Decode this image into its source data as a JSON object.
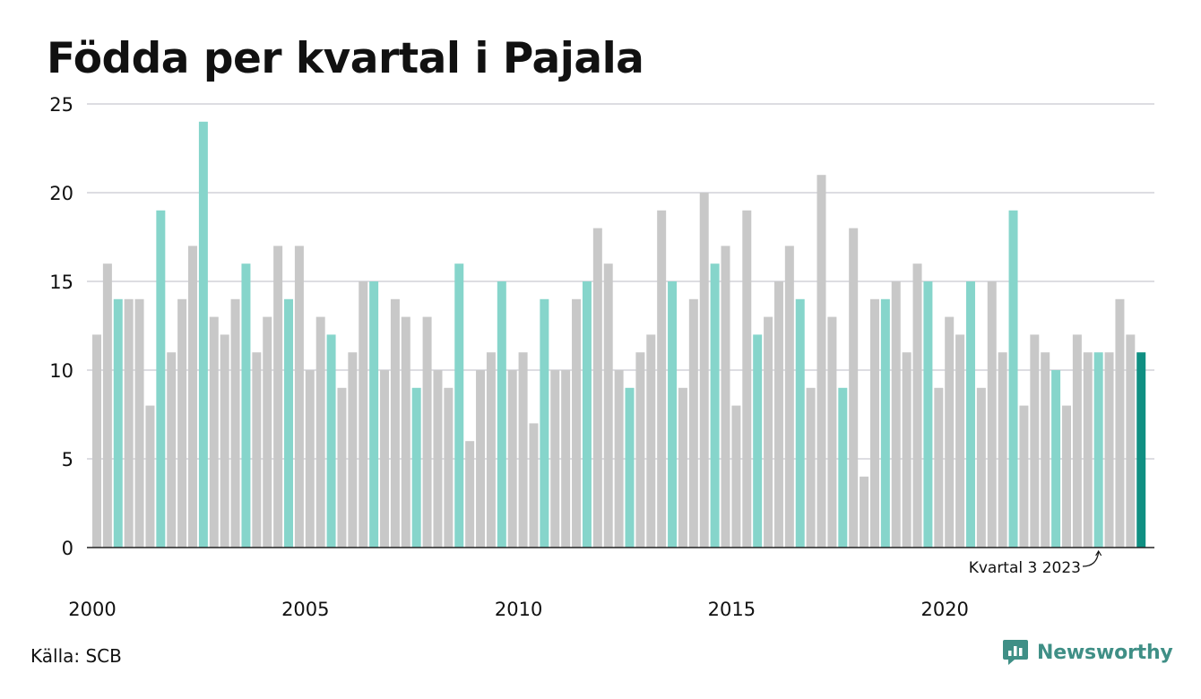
{
  "page": {
    "title": "Födda per kvartal i Pajala",
    "source": "Källa: SCB",
    "brand": "Newsworthy"
  },
  "colors": {
    "bar_default": "#c8c8c8",
    "bar_q3": "#86d5cb",
    "bar_highlight": "#0f8f82",
    "grid": "#dddde2",
    "axis": "#222222"
  },
  "chart_data": {
    "type": "bar",
    "title": "Födda per kvartal i Pajala",
    "xlabel": "",
    "ylabel": "",
    "ylim": [
      0,
      25
    ],
    "yticks": [
      0,
      5,
      10,
      15,
      20,
      25
    ],
    "xtick_labels": [
      "2000",
      "2005",
      "2010",
      "2015",
      "2020"
    ],
    "grid": true,
    "start": "2000 Q1",
    "end": "2024 Q3",
    "values": [
      12,
      16,
      14,
      14,
      14,
      8,
      19,
      11,
      14,
      17,
      24,
      13,
      12,
      14,
      16,
      11,
      13,
      17,
      14,
      17,
      10,
      13,
      12,
      9,
      11,
      15,
      15,
      10,
      14,
      13,
      9,
      13,
      10,
      9,
      16,
      6,
      10,
      11,
      15,
      10,
      11,
      7,
      14,
      10,
      10,
      14,
      15,
      18,
      16,
      10,
      9,
      11,
      12,
      19,
      15,
      9,
      14,
      20,
      16,
      17,
      8,
      19,
      12,
      13,
      15,
      17,
      14,
      9,
      21,
      13,
      9,
      18,
      4,
      14,
      14,
      15,
      11,
      16,
      15,
      9,
      13,
      12,
      15,
      9,
      15,
      11,
      19,
      8,
      12,
      11,
      10,
      8,
      12,
      11,
      11,
      11,
      14,
      12,
      11
    ],
    "annotation": {
      "text": "Kvartal 3 2023",
      "target": "2023 Q3"
    },
    "highlight": "2024 Q3",
    "series_color_rule": "Q3 bars teal, latest bar dark teal, others gray"
  }
}
